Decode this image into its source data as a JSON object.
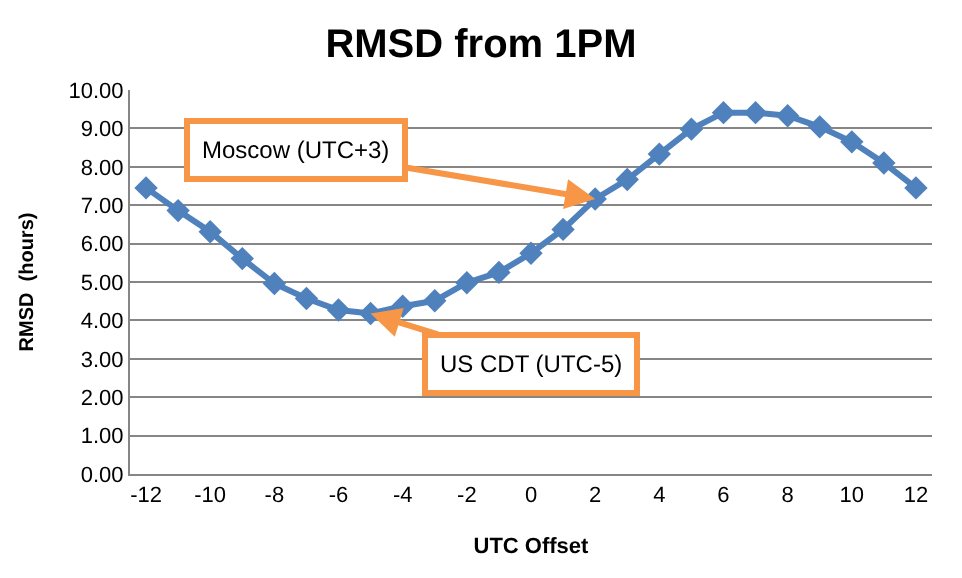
{
  "chart_data": {
    "type": "line",
    "title": "RMSD from 1PM",
    "xlabel": "UTC Offset",
    "ylabel": "RMSD  (hours)",
    "x": [
      -12,
      -11,
      -10,
      -9,
      -8,
      -7,
      -6,
      -5,
      -4,
      -3,
      -2,
      -1,
      0,
      1,
      2,
      3,
      4,
      5,
      6,
      7,
      8,
      9,
      10,
      11,
      12
    ],
    "series": [
      {
        "color": "#4f81bd",
        "values": [
          7.45,
          6.86,
          6.31,
          5.61,
          4.96,
          4.57,
          4.27,
          4.18,
          4.37,
          4.51,
          4.98,
          5.25,
          5.75,
          6.37,
          7.16,
          7.67,
          8.33,
          8.98,
          9.41,
          9.41,
          9.33,
          9.04,
          8.65,
          8.1,
          7.45
        ]
      }
    ],
    "xlim": [
      -12.5,
      12.5
    ],
    "xticks": [
      -12,
      -10,
      -8,
      -6,
      -4,
      -2,
      0,
      2,
      4,
      6,
      8,
      10,
      12
    ],
    "ylim": [
      0,
      10
    ],
    "yticks": [
      {
        "value": 0,
        "label": "0.00"
      },
      {
        "value": 1,
        "label": "1.00"
      },
      {
        "value": 2,
        "label": "2.00"
      },
      {
        "value": 3,
        "label": "3.00"
      },
      {
        "value": 4,
        "label": "4.00"
      },
      {
        "value": 5,
        "label": "5.00"
      },
      {
        "value": 6,
        "label": "6.00"
      },
      {
        "value": 7,
        "label": "7.00"
      },
      {
        "value": 8,
        "label": "8.00"
      },
      {
        "value": 9,
        "label": "9.00"
      },
      {
        "value": 10,
        "label": "10.00"
      }
    ],
    "annotations": [
      {
        "text": "Moscow (UTC+3)",
        "x": 2,
        "y": 7.16
      },
      {
        "text": "US CDT (UTC-5)",
        "x": -5,
        "y": 4.18
      }
    ],
    "grid": "y",
    "legend": false,
    "marker": "diamond",
    "line_style": "solid"
  }
}
